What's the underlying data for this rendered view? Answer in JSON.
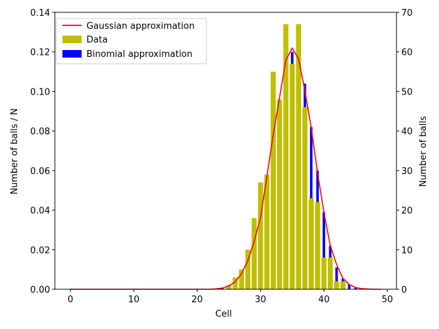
{
  "chart_data": {
    "type": "bar",
    "title": "",
    "xlabel": "Cell",
    "ylabel_left": "Number of balls / N",
    "ylabel_right": "Number of balls",
    "xlim": [
      -2.45,
      51.45
    ],
    "ylim_left": [
      0,
      0.14
    ],
    "ylim_right": [
      0,
      70
    ],
    "x_ticks": [
      0,
      10,
      20,
      30,
      40,
      50
    ],
    "y_ticks_left": [
      "0.00",
      "0.02",
      "0.04",
      "0.06",
      "0.08",
      "0.10",
      "0.12",
      "0.14"
    ],
    "y_ticks_right": [
      0,
      10,
      20,
      30,
      40,
      50,
      60,
      70
    ],
    "grid": false,
    "legend_position": "top-left",
    "series": [
      {
        "name": "Gaussian approximation",
        "kind": "line",
        "axis": "left",
        "color": "#ff0000",
        "x": [
          0,
          1,
          2,
          3,
          4,
          5,
          6,
          7,
          8,
          9,
          10,
          11,
          12,
          13,
          14,
          15,
          16,
          17,
          18,
          19,
          20,
          21,
          22,
          23,
          24,
          25,
          26,
          27,
          28,
          29,
          30,
          31,
          32,
          33,
          34,
          35,
          36,
          37,
          38,
          39,
          40,
          41,
          42,
          43,
          44,
          45,
          46,
          47,
          48,
          49
        ],
        "values": [
          0,
          0,
          0,
          0,
          0,
          0,
          0,
          0,
          0,
          0,
          0,
          0,
          0,
          0,
          0,
          0,
          0,
          0,
          0,
          0,
          0,
          0,
          0,
          0.0002,
          0.0006,
          0.0017,
          0.0038,
          0.0078,
          0.0145,
          0.0242,
          0.0363,
          0.0569,
          0.0781,
          0.0968,
          0.1159,
          0.1219,
          0.1164,
          0.1005,
          0.0816,
          0.0589,
          0.0389,
          0.0222,
          0.0125,
          0.0055,
          0.0024,
          0.0009,
          0.0003,
          0.0001,
          0,
          0
        ]
      },
      {
        "name": "Data",
        "kind": "bar",
        "axis": "left",
        "color": "#bfbf00",
        "x": [
          25,
          26,
          27,
          28,
          29,
          30,
          31,
          32,
          33,
          34,
          35,
          36,
          37,
          38,
          39,
          40,
          41,
          42,
          43
        ],
        "values": [
          0.002,
          0.006,
          0.01,
          0.02,
          0.036,
          0.054,
          0.058,
          0.11,
          0.096,
          0.134,
          0.114,
          0.134,
          0.092,
          0.046,
          0.044,
          0.016,
          0.016,
          0.004,
          0.004
        ]
      },
      {
        "name": "Binomial approximation",
        "kind": "bar",
        "axis": "right",
        "color": "#0000ff",
        "x": [
          24,
          25,
          26,
          27,
          28,
          29,
          30,
          31,
          32,
          33,
          34,
          35,
          36,
          37,
          38,
          39,
          40,
          41,
          42,
          43,
          44,
          45,
          46
        ],
        "values": [
          0.2,
          0.5,
          1.3,
          2.8,
          5.5,
          9.7,
          15.5,
          22.4,
          29.1,
          34.4,
          39,
          60,
          57,
          52,
          41,
          30,
          19.5,
          11,
          5.5,
          2.7,
          1.2,
          0.4,
          0.1
        ]
      }
    ]
  }
}
